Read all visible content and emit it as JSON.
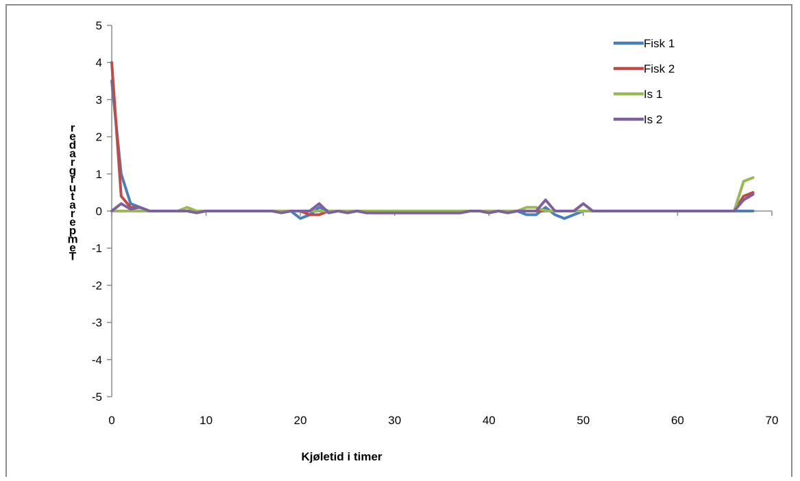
{
  "chart_data": {
    "type": "line",
    "title": "",
    "xlabel": "Kjøletid i timer",
    "ylabel": "Temperatur grader",
    "xlim": [
      0,
      70
    ],
    "ylim": [
      -5,
      5
    ],
    "x_ticks": [
      0,
      10,
      20,
      30,
      40,
      50,
      60,
      70
    ],
    "y_ticks": [
      5,
      4,
      3,
      2,
      1,
      0,
      -1,
      -2,
      -3,
      -4,
      -5
    ],
    "grid": false,
    "legend_position": "top-right",
    "x": [
      0,
      1,
      2,
      3,
      4,
      5,
      6,
      7,
      8,
      9,
      10,
      11,
      12,
      13,
      14,
      15,
      16,
      17,
      18,
      19,
      20,
      21,
      22,
      23,
      24,
      25,
      26,
      27,
      28,
      29,
      30,
      31,
      32,
      33,
      34,
      35,
      36,
      37,
      38,
      39,
      40,
      41,
      42,
      43,
      44,
      45,
      46,
      47,
      48,
      49,
      50,
      51,
      52,
      53,
      54,
      55,
      56,
      57,
      58,
      59,
      60,
      61,
      62,
      63,
      64,
      65,
      66,
      67,
      68
    ],
    "series": [
      {
        "name": "Fisk 1",
        "color": "#4a7ebb",
        "values": [
          3.5,
          1.0,
          0.2,
          0.1,
          0,
          0,
          0,
          0,
          0,
          0,
          0,
          0,
          0,
          0,
          0,
          0,
          0,
          0,
          0,
          0,
          -0.2,
          -0.1,
          0.1,
          0,
          0,
          0,
          0,
          0,
          0,
          0,
          0,
          0,
          0,
          0,
          0,
          0,
          0,
          0,
          0,
          0,
          0,
          0,
          0,
          0,
          -0.1,
          -0.1,
          0.1,
          -0.1,
          -0.2,
          -0.1,
          0,
          0,
          0,
          0,
          0,
          0,
          0,
          0,
          0,
          0,
          0,
          0,
          0,
          0,
          0,
          0,
          0,
          0,
          0
        ]
      },
      {
        "name": "Fisk 2",
        "color": "#be4b48",
        "values": [
          4.0,
          0.4,
          0.1,
          0.1,
          0,
          0,
          0,
          0,
          0,
          0,
          0,
          0,
          0,
          0,
          0,
          0,
          0,
          0,
          0,
          0,
          0,
          -0.1,
          -0.1,
          0,
          0,
          0,
          0,
          0,
          0,
          0,
          0,
          0,
          0,
          0,
          0,
          0,
          0,
          0,
          0,
          0,
          0,
          0,
          0,
          0,
          0,
          0,
          0,
          0,
          0,
          0,
          0,
          0,
          0,
          0,
          0,
          0,
          0,
          0,
          0,
          0,
          0,
          0,
          0,
          0,
          0,
          0,
          0,
          0.4,
          0.5
        ]
      },
      {
        "name": "Is 1",
        "color": "#98b954",
        "values": [
          0,
          0,
          0,
          0,
          0,
          0,
          0,
          0,
          0.1,
          0,
          0,
          0,
          0,
          0,
          0,
          0,
          0,
          0,
          0,
          0,
          0,
          0,
          0,
          0,
          0,
          0,
          0,
          0,
          0,
          0,
          0,
          0,
          0,
          0,
          0,
          0,
          0,
          0,
          0,
          0,
          0,
          0,
          0,
          0,
          0.1,
          0.1,
          0,
          0,
          0,
          0,
          0,
          0,
          0,
          0,
          0,
          0,
          0,
          0,
          0,
          0,
          0,
          0,
          0,
          0,
          0,
          0,
          0,
          0.8,
          0.9
        ]
      },
      {
        "name": "Is 2",
        "color": "#7d60a0",
        "values": [
          0,
          0.2,
          0.05,
          0.1,
          0,
          0,
          0,
          0,
          0,
          -0.05,
          0,
          0,
          0,
          0,
          0,
          0,
          0,
          0,
          -0.05,
          0,
          0,
          0,
          0.2,
          -0.05,
          0,
          -0.05,
          0,
          -0.05,
          -0.05,
          -0.05,
          -0.05,
          -0.05,
          -0.05,
          -0.05,
          -0.05,
          -0.05,
          -0.05,
          -0.05,
          0,
          0,
          -0.05,
          0,
          -0.05,
          0,
          0,
          0,
          0.3,
          0,
          0,
          0,
          0.2,
          0,
          0,
          0,
          0,
          0,
          0,
          0,
          0,
          0,
          0,
          0,
          0,
          0,
          0,
          0,
          0,
          0.3,
          0.45
        ]
      }
    ]
  }
}
